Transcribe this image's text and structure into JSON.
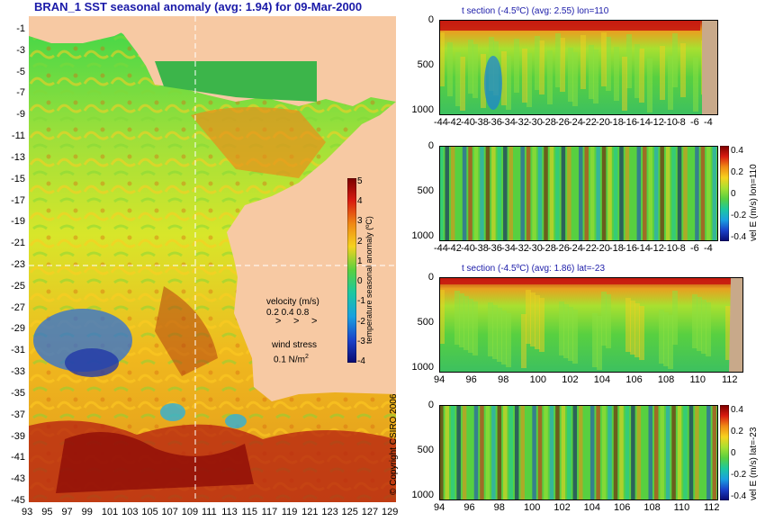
{
  "main_map": {
    "title": "BRAN_1 SST seasonal anomaly (avg: 1.94) for 09-Mar-2000",
    "lat_ticks": [
      "-1",
      "-3",
      "-5",
      "-7",
      "-9",
      "-11",
      "-13",
      "-15",
      "-17",
      "-19",
      "-21",
      "-23",
      "-25",
      "-27",
      "-29",
      "-31",
      "-33",
      "-35",
      "-37",
      "-39",
      "-41",
      "-43",
      "-45"
    ],
    "lon_ticks": [
      "93",
      "95",
      "97",
      "99",
      "101",
      "103",
      "105",
      "107",
      "109",
      "111",
      "113",
      "115",
      "117",
      "119",
      "121",
      "123",
      "125",
      "127",
      "129"
    ],
    "colorbar": {
      "label": "temperature seasonal anomaly (ºC)",
      "ticks": [
        "5",
        "4",
        "3",
        "2",
        "1",
        "0",
        "-1",
        "-2",
        "-3",
        "-4"
      ]
    },
    "legend": {
      "velocity_label": "velocity (m/s)",
      "velocity_values": "0.2 0.4 0.8",
      "wind_label": "wind stress",
      "wind_value": "0.1 N/m",
      "wind_exp": "2"
    }
  },
  "copyright": "© Copyright CSIRO 2006",
  "colors": {
    "land": "#f7c9a3",
    "land_section": "#c8a98a",
    "title_blue": "#1a1aa8",
    "crosshair": "#ffffff"
  },
  "chart_data": [
    {
      "type": "heatmap",
      "title": "t section (-4.5ºC) (avg: 2.55) lon=110",
      "x_ticks": [
        "-44",
        "-42",
        "-40",
        "-38",
        "-36",
        "-34",
        "-32",
        "-30",
        "-28",
        "-26",
        "-24",
        "-22",
        "-20",
        "-18",
        "-16",
        "-14",
        "-12",
        "-10",
        "-8",
        "-6",
        "-4"
      ],
      "y_ticks": [
        "0",
        "500",
        "1000"
      ],
      "xlim": [
        -45,
        -2
      ],
      "ylim": [
        1000,
        0
      ]
    },
    {
      "type": "heatmap",
      "title": "",
      "x_ticks": [
        "-44",
        "-42",
        "-40",
        "-38",
        "-36",
        "-34",
        "-32",
        "-30",
        "-28",
        "-26",
        "-24",
        "-22",
        "-20",
        "-18",
        "-16",
        "-14",
        "-12",
        "-10",
        "-8",
        "-6",
        "-4"
      ],
      "y_ticks": [
        "0",
        "500",
        "1000"
      ],
      "colorbar_label": "vel E (m/s) lon=110",
      "colorbar_ticks": [
        "0.4",
        "0.2",
        "0",
        "-0.2",
        "-0.4"
      ]
    },
    {
      "type": "heatmap",
      "title": "t section (-4.5ºC) (avg: 1.86) lat=-23",
      "x_ticks": [
        "94",
        "96",
        "98",
        "100",
        "102",
        "104",
        "106",
        "108",
        "110",
        "112"
      ],
      "y_ticks": [
        "0",
        "500",
        "1000"
      ],
      "xlim": [
        93,
        114
      ],
      "ylim": [
        1000,
        0
      ]
    },
    {
      "type": "heatmap",
      "title": "",
      "x_ticks": [
        "94",
        "96",
        "98",
        "100",
        "102",
        "104",
        "106",
        "108",
        "110",
        "112"
      ],
      "y_ticks": [
        "0",
        "500",
        "1000"
      ],
      "colorbar_label": "vel E (m/s) lat=-23",
      "colorbar_ticks": [
        "0.4",
        "0.2",
        "0",
        "-0.2",
        "-0.4"
      ]
    }
  ]
}
